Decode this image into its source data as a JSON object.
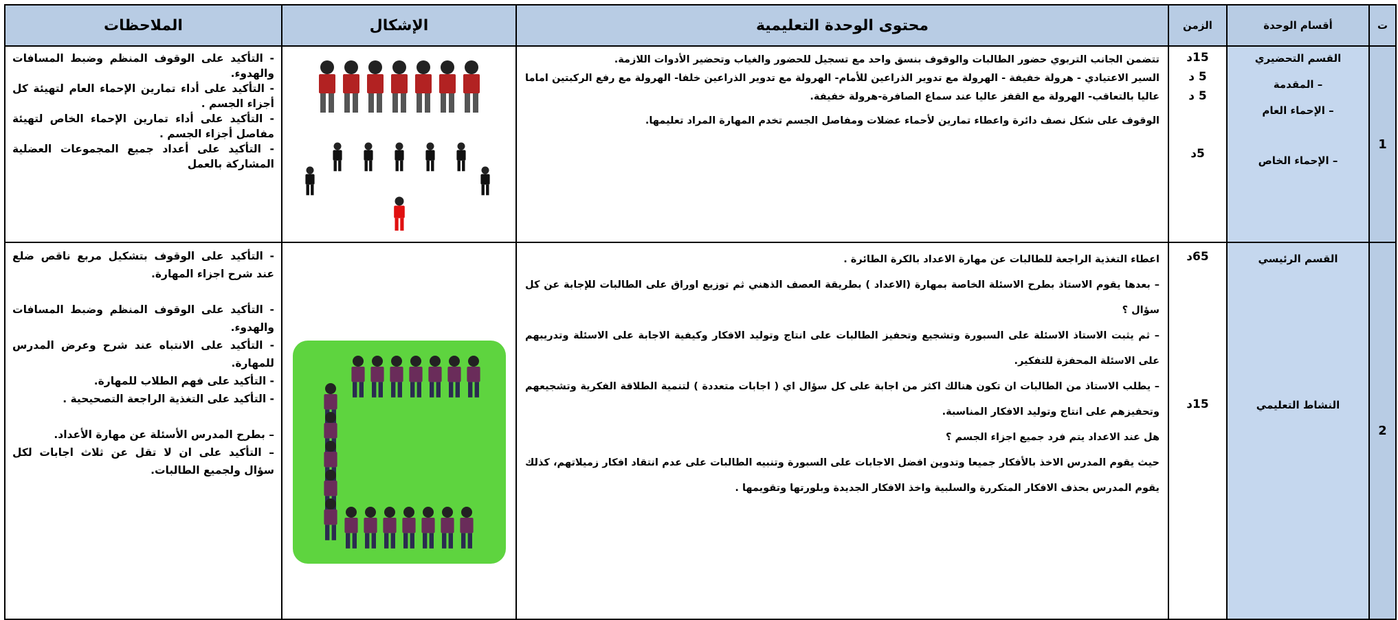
{
  "header": {
    "number": "ت",
    "sections": "أقسام الوحدة",
    "time": "الزمن",
    "content": "محتوى الوحدة التعليمية",
    "shapes": "الإشكال",
    "notes": "الملاحظات"
  },
  "rows": [
    {
      "number": "1",
      "sections": [
        "القسم التحضيري",
        "– المقدمة",
        "– الإحماء العام",
        "– الإحماء الخاص"
      ],
      "times": [
        "15د",
        "5 د",
        "5 د",
        "5د"
      ],
      "content": [
        "تتضمن الجانب التربوي حضور الطالبات والوقوف بنسق واحد مع تسجيل للحضور والغياب وتحضير الأدوات اللازمة.",
        "السير الاعتيادي - هرولة خفيفة - الهرولة مع تدوير الذراعين للأمام- الهرولة مع تدوير الذراعين خلفا- الهرولة مع رفع الركبتين اماما عاليا بالتعاقب- الهرولة مع القفز عاليا عند سماع الصافرة-هرولة خفيفة.",
        "الوقوف على شكل نصف دائرة واعطاء تمارين لأحماء عضلات ومفاصل الجسم تخدم المهارة المراد تعليمها."
      ],
      "notes": [
        "- التأكيد على الوقوف المنظم وضبط المسافات والهدوء.",
        "- التأكيد على أداء تمارين الإحماء العام لتهيئة كل أجزاء الجسم .",
        "- التأكيد على أداء تمارين الإحماء الخاص لتهيئة مفاصل أجزاء الجسم .",
        "- التأكيد على أعداد جميع المجموعات العضلية المشاركة بالعمل"
      ]
    },
    {
      "number": "2",
      "sections": [
        "القسم الرئيسي",
        "النشاط التعليمي"
      ],
      "times": [
        "65د",
        "15د"
      ],
      "content": [
        "اعطاء التغذية الراجعة للطالبات عن مهارة الاعداد بالكرة الطائرة .",
        "– بعدها يقوم الاستاذ بطرح الاسئلة الخاصة بمهارة (الاعداد ) بطريقة العصف الذهني ثم توزيع اوراق على الطالبات للإجابة عن كل سؤال ؟",
        "– ثم يثبت الاستاذ الاسئلة على السبورة وتشجيع وتحفيز الطالبات على انتاج وتوليد الافكار وكيفية الاجابة على الاسئلة وتدريبهم على الاسئلة المحفزة للتفكير.",
        "– يطلب الاستاذ من الطالبات ان تكون هنالك اكثر من اجابة على كل سؤال اي ( اجابات متعددة ) لتنمية الطلاقة الفكرية وتشجيعهم وتحفيزهم على انتاج وتوليد الافكار المناسبة.",
        "هل عند الاعداد يتم فرد جميع اجزاء الجسم ؟",
        "حيث يقوم المدرس الاخذ بالأفكار جميعا وتدوين افضل الاجابات على السبورة وتنبيه الطالبات على عدم انتقاد افكار زميلاتهم، كذلك يقوم المدرس بحذف الافكار المتكررة والسلبية واخذ الافكار الجديدة وبلورتها وتقويمها ."
      ],
      "notes": [
        "- التأكيد على الوقوف بتشكيل مربع ناقص ضلع عند شرح اجزاء المهارة.",
        "- التأكيد على الوقوف المنظم وضبط المسافات والهدوء.",
        "- التأكيد على الانتباه عند شرح وعرض المدرس للمهارة.",
        "- التأكيد على فهم الطلاب للمهارة.",
        "- التأكيد على التغذية الراجعة التصحيحية .",
        "– بطرح المدرس الأسئلة عن مهارة الأعداد.",
        "– التأكيد على ان لا تقل عن ثلاث اجابات لكل سؤال ولجميع الطالبات."
      ]
    }
  ]
}
